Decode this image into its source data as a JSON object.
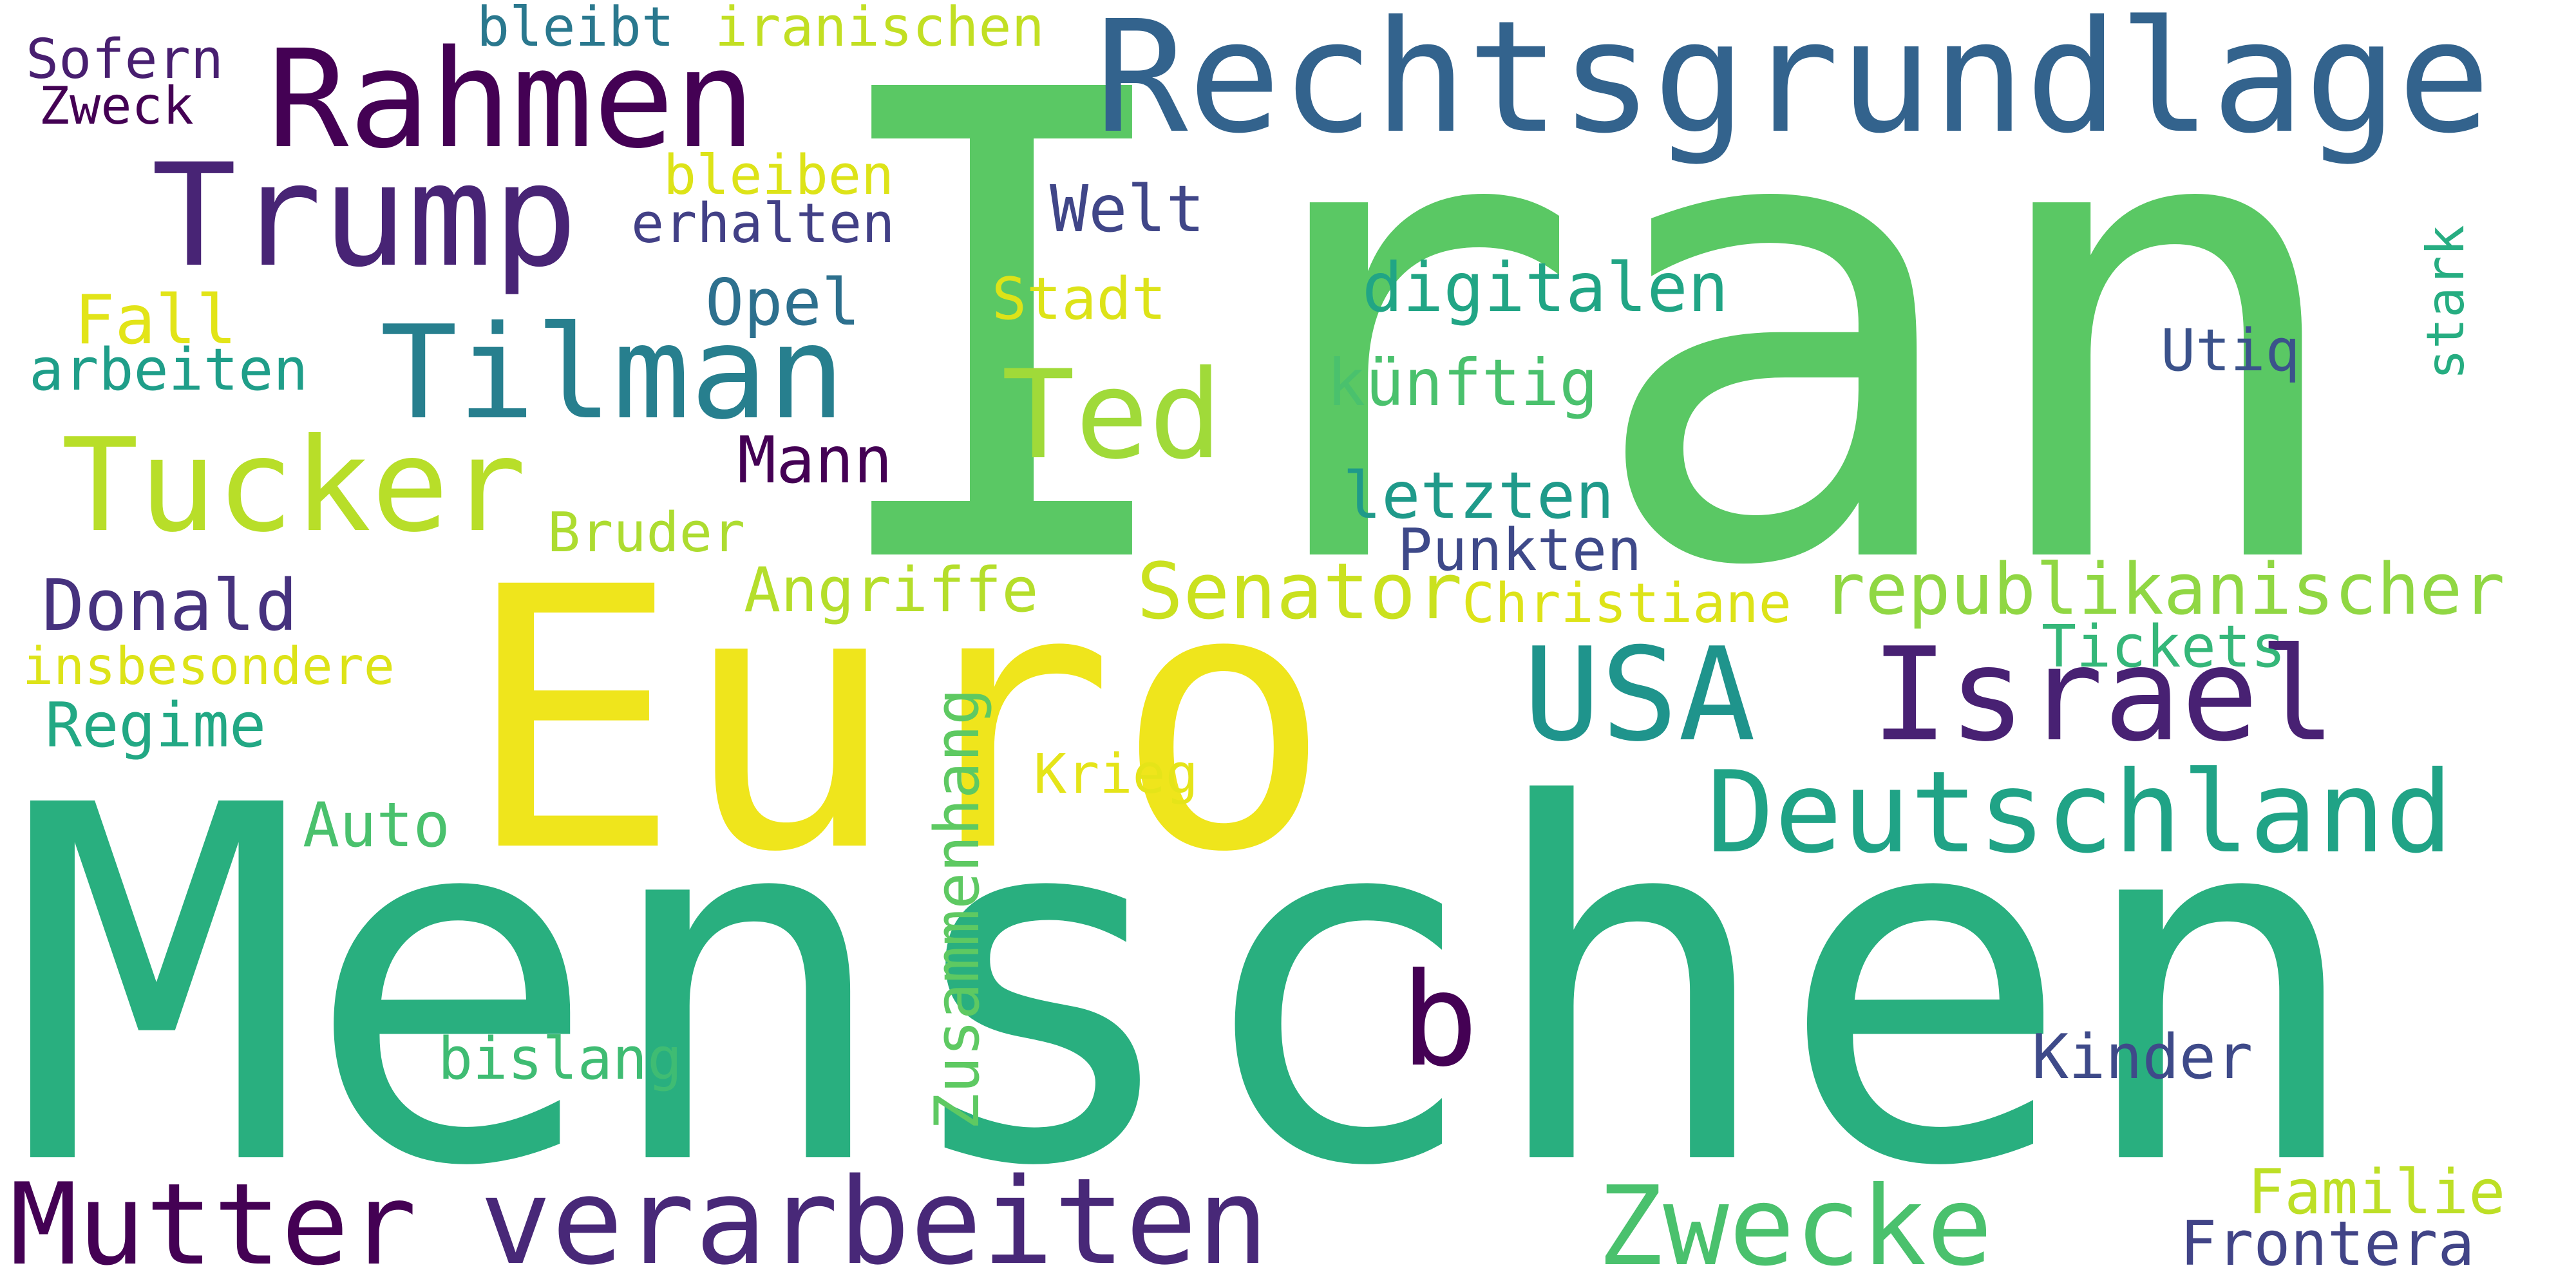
{
  "words": [
    {
      "text": "Iran",
      "color": "#5ac864"
    },
    {
      "text": "Menschen",
      "color": "#29af7f"
    },
    {
      "text": "Euro",
      "color": "#efe51c"
    },
    {
      "text": "Rechtsgrundlage",
      "color": "#33638d"
    },
    {
      "text": "Rahmen",
      "color": "#440154"
    },
    {
      "text": "Trump",
      "color": "#482475"
    },
    {
      "text": "Tilman",
      "color": "#277f8e"
    },
    {
      "text": "Tucker",
      "color": "#b8de29"
    },
    {
      "text": "Ted",
      "color": "#a0da39"
    },
    {
      "text": "USA",
      "color": "#1f948c"
    },
    {
      "text": "Israel",
      "color": "#482173"
    },
    {
      "text": "Deutschland",
      "color": "#20a386"
    },
    {
      "text": "b",
      "color": "#440154"
    },
    {
      "text": "Mutter",
      "color": "#440154"
    },
    {
      "text": "verarbeiten",
      "color": "#482878"
    },
    {
      "text": "Zwecke",
      "color": "#4ac16d"
    },
    {
      "text": "Frontera",
      "color": "#414487"
    },
    {
      "text": "Familie",
      "color": "#bddf26"
    },
    {
      "text": "Kinder",
      "color": "#3e4a89"
    },
    {
      "text": "Tickets",
      "color": "#35b779"
    },
    {
      "text": "republikanischer",
      "color": "#90d743"
    },
    {
      "text": "Christiane",
      "color": "#dde318"
    },
    {
      "text": "Senator",
      "color": "#cae11f"
    },
    {
      "text": "Punkten",
      "color": "#3e4989"
    },
    {
      "text": "letzten",
      "color": "#1f9a8a"
    },
    {
      "text": "künftig",
      "color": "#4ac16d"
    },
    {
      "text": "digitalen",
      "color": "#21a585"
    },
    {
      "text": "Utiq",
      "color": "#3b528b"
    },
    {
      "text": "stark",
      "color": "#26ad81"
    },
    {
      "text": "Welt",
      "color": "#404688"
    },
    {
      "text": "Stadt",
      "color": "#dde318"
    },
    {
      "text": "Opel",
      "color": "#2d708e"
    },
    {
      "text": "Angriffe",
      "color": "#b5de2b"
    },
    {
      "text": "Mann",
      "color": "#440154"
    },
    {
      "text": "Bruder",
      "color": "#addc30"
    },
    {
      "text": "Krieg",
      "color": "#e5e419"
    },
    {
      "text": "Zusammenhang",
      "color": "#5ec962"
    },
    {
      "text": "bislang",
      "color": "#3fbc73"
    },
    {
      "text": "Auto",
      "color": "#4ac16d"
    },
    {
      "text": "Regime",
      "color": "#22a884"
    },
    {
      "text": "insbesondere",
      "color": "#dde318"
    },
    {
      "text": "Donald",
      "color": "#46327e"
    },
    {
      "text": "arbeiten",
      "color": "#1f9e89"
    },
    {
      "text": "Fall",
      "color": "#e2e418"
    },
    {
      "text": "erhalten",
      "color": "#424086"
    },
    {
      "text": "bleiben",
      "color": "#dde318"
    },
    {
      "text": "bleibt",
      "color": "#2a788e"
    },
    {
      "text": "iranischen",
      "color": "#c2df23"
    },
    {
      "text": "Sofern",
      "color": "#481f70"
    },
    {
      "text": "Zweck",
      "color": "#440154"
    }
  ]
}
